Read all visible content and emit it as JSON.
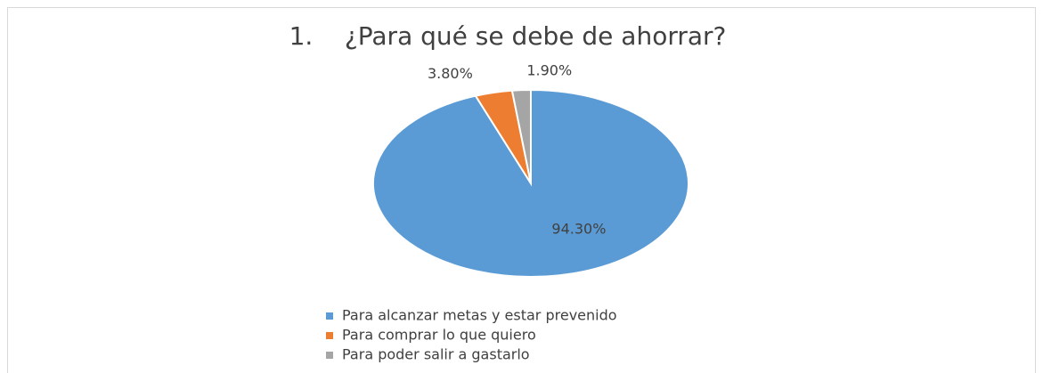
{
  "chart_data": {
    "type": "pie",
    "title": "1.    ¿Para qué se debe de ahorrar?",
    "categories": [
      "Para alcanzar metas y estar prevenido",
      "Para comprar lo que quiero",
      "Para poder salir a gastarlo"
    ],
    "values": [
      94.3,
      3.8,
      1.9
    ],
    "value_labels": [
      "94.30%",
      "3.80%",
      "1.90%"
    ],
    "colors": [
      "#5b9bd5",
      "#ed7d31",
      "#a5a5a5"
    ],
    "legend": "bottom"
  }
}
